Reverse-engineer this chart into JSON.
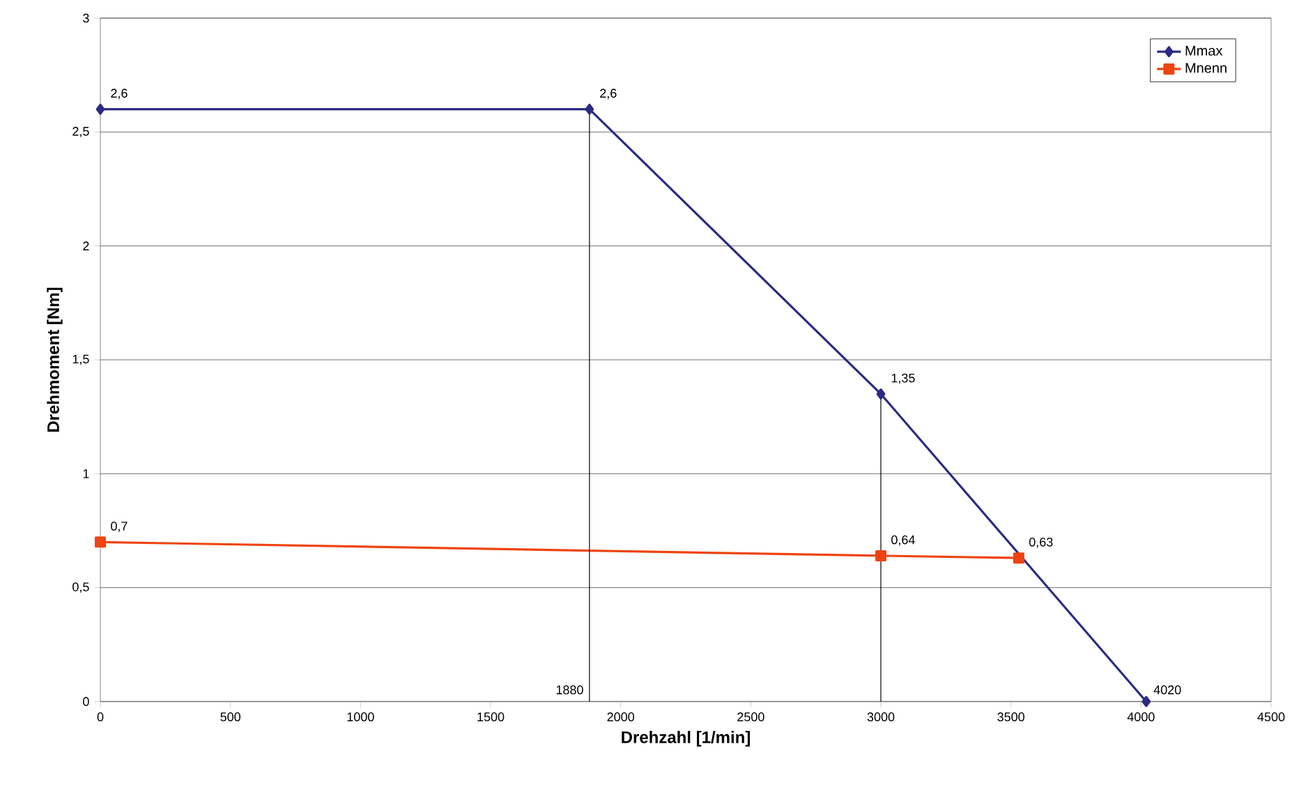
{
  "chart_data": {
    "type": "line",
    "xlabel": "Drehzahl [1/min]",
    "ylabel": "Drehmoment [Nm]",
    "xlim": [
      0,
      4500
    ],
    "xticks": [
      0,
      500,
      1000,
      1500,
      2000,
      2500,
      3000,
      3500,
      4000,
      4500
    ],
    "ylim": [
      0,
      3
    ],
    "yticks": [
      0,
      {
        "value": 0.5,
        "label": "0,5"
      },
      1,
      {
        "value": 1.5,
        "label": "1,5"
      },
      2,
      {
        "value": 2.5,
        "label": "2,5"
      },
      3
    ],
    "grid": "y",
    "legend": "top right",
    "series": [
      {
        "name": "Mmax",
        "color": "#2b2b83",
        "marker": "diamond",
        "x": [
          0,
          1880,
          3000,
          4020
        ],
        "values": [
          2.6,
          2.6,
          1.35,
          0
        ],
        "value_labels": [
          "2,6",
          "2,6",
          "1,35",
          null
        ]
      },
      {
        "name": "Mnenn",
        "color": "#ee4411",
        "marker": "square",
        "x": [
          0,
          3000,
          3530
        ],
        "values": [
          0.7,
          0.64,
          0.63
        ],
        "value_labels": [
          "0,7",
          "0,64",
          "0,63"
        ]
      },
      {
        "color": "#000000",
        "marker": "none",
        "x": [
          1880,
          1880
        ],
        "values": [
          0,
          2.6
        ]
      },
      {
        "color": "#000000",
        "marker": "none",
        "x": [
          3000,
          3000
        ],
        "values": [
          0,
          1.35
        ]
      }
    ],
    "annotations": [
      {
        "text": "1880",
        "x": 1880,
        "y": 0
      },
      {
        "text": "4020",
        "x": 4020,
        "y": 0
      }
    ]
  }
}
